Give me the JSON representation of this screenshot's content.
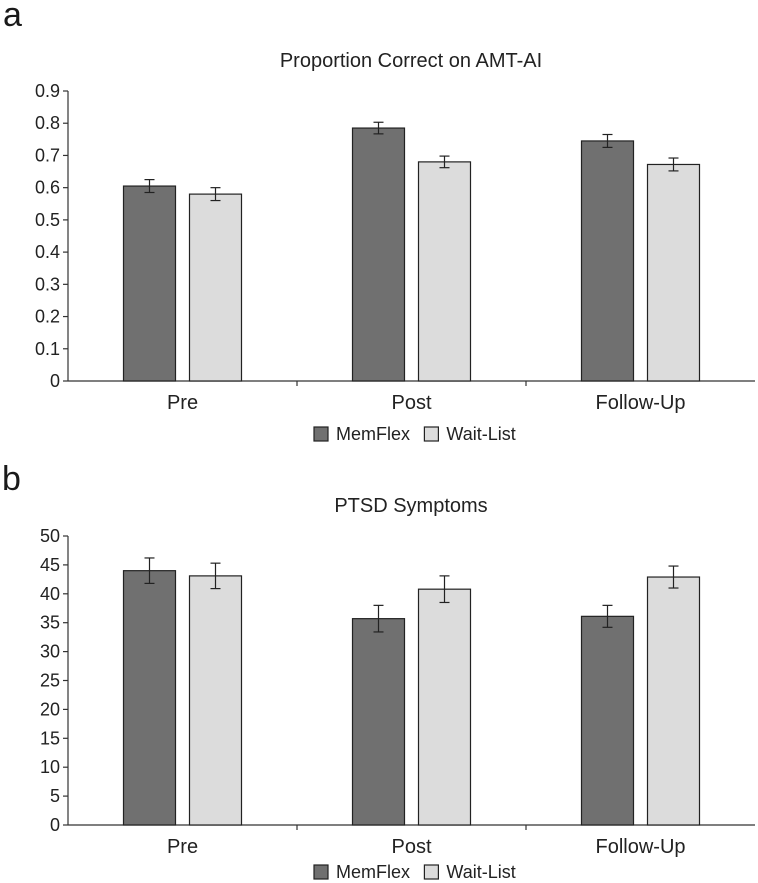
{
  "figure": {
    "panel_a_label": "a",
    "panel_b_label": "b"
  },
  "chart_data": [
    {
      "type": "bar",
      "title": "Proportion Correct on AMT-AI",
      "xlabel": "",
      "ylabel": "",
      "categories": [
        "Pre",
        "Post",
        "Follow-Up"
      ],
      "ylim": [
        0,
        0.9
      ],
      "yticks": [
        0,
        0.1,
        0.2,
        0.3,
        0.4,
        0.5,
        0.6,
        0.7,
        0.8,
        0.9
      ],
      "legend_position": "bottom",
      "series": [
        {
          "name": "MemFlex",
          "color": "#707070",
          "values": [
            0.605,
            0.785,
            0.745
          ],
          "errors": [
            0.02,
            0.018,
            0.02
          ]
        },
        {
          "name": "Wait-List",
          "color": "#dcdcdc",
          "values": [
            0.58,
            0.68,
            0.672
          ],
          "errors": [
            0.02,
            0.018,
            0.02
          ]
        }
      ]
    },
    {
      "type": "bar",
      "title": "PTSD Symptoms",
      "xlabel": "",
      "ylabel": "",
      "categories": [
        "Pre",
        "Post",
        "Follow-Up"
      ],
      "ylim": [
        0,
        50
      ],
      "yticks": [
        0,
        5,
        10,
        15,
        20,
        25,
        30,
        35,
        40,
        45,
        50
      ],
      "legend_position": "bottom",
      "series": [
        {
          "name": "MemFlex",
          "color": "#707070",
          "values": [
            44.0,
            35.7,
            36.1
          ],
          "errors": [
            2.2,
            2.3,
            1.9
          ]
        },
        {
          "name": "Wait-List",
          "color": "#dcdcdc",
          "values": [
            43.1,
            40.8,
            42.9
          ],
          "errors": [
            2.2,
            2.3,
            1.9
          ]
        }
      ]
    }
  ]
}
